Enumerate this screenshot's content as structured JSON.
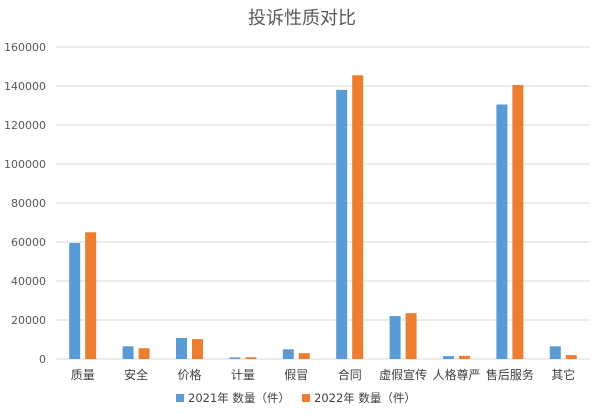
{
  "chart_data": {
    "type": "bar",
    "title": "投诉性质对比",
    "categories": [
      "质量",
      "安全",
      "价格",
      "计量",
      "假冒",
      "合同",
      "虚假宣传",
      "人格尊严",
      "售后服务",
      "其它"
    ],
    "series": [
      {
        "name": "2021年 数量（件）",
        "color": "#5b9bd5",
        "values": [
          59500,
          6500,
          10800,
          800,
          5000,
          138000,
          22000,
          1500,
          130500,
          6500
        ]
      },
      {
        "name": "2022年 数量（件）",
        "color": "#ed7d31",
        "values": [
          65000,
          5500,
          10200,
          900,
          3000,
          145500,
          23500,
          1600,
          140500,
          2000
        ]
      }
    ],
    "ylim": [
      0,
      160000
    ],
    "yticks": [
      "0",
      "20000",
      "40000",
      "60000",
      "80000",
      "100000",
      "120000",
      "140000",
      "160000"
    ],
    "grid": true,
    "legend_position": "bottom"
  }
}
